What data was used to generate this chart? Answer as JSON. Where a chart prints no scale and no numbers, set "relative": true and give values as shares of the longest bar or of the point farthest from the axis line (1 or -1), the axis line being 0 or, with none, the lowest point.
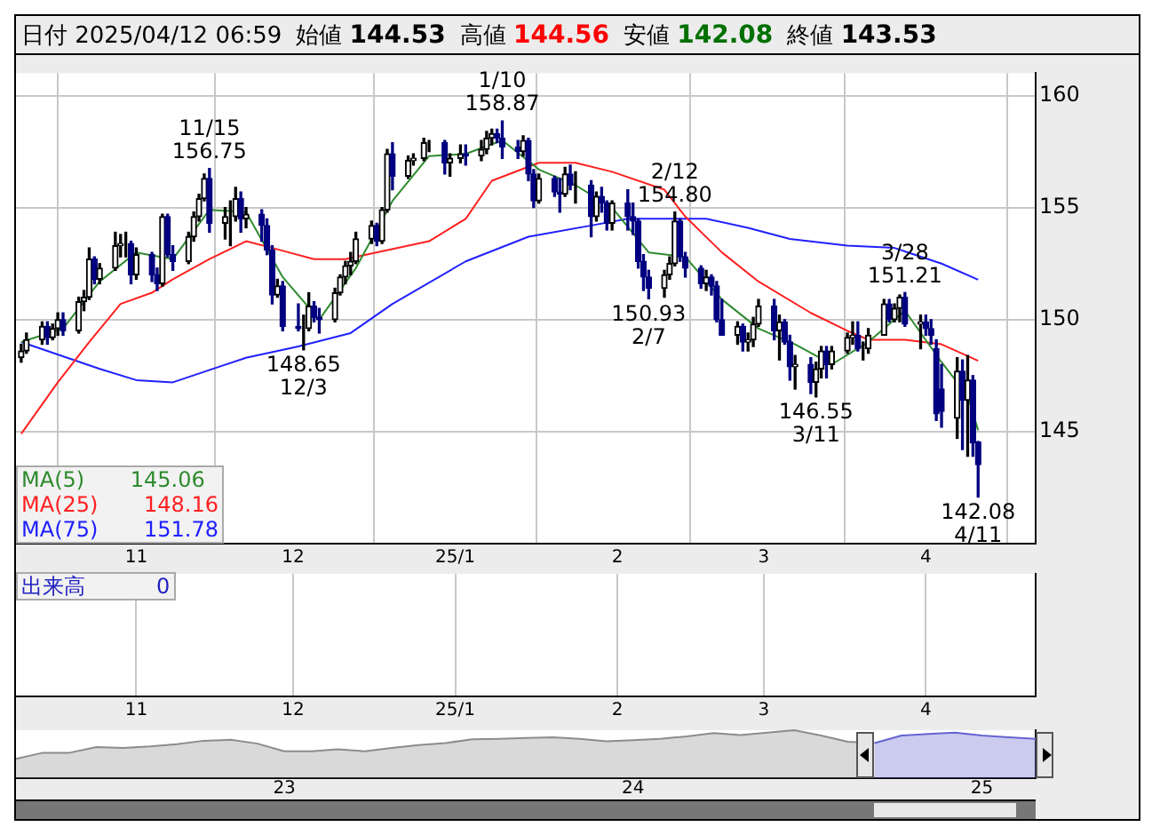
{
  "chart_data": [
    {
      "type": "candlestick",
      "annotations": [
        "日付 2025/04/12 06:59",
        "始値 144.53",
        "高値 144.56",
        "安値 142.08",
        "終値 143.53",
        {
          "text": "11/15\n156.75",
          "x": "2024-11-15",
          "y": 156.75
        },
        {
          "text": "148.65\n12/3",
          "x": "2024-12-03",
          "y": 148.65
        },
        {
          "text": "1/10\n158.87",
          "x": "2025-01-10",
          "y": 158.87
        },
        {
          "text": "150.93\n2/7",
          "x": "2025-02-07",
          "y": 150.93
        },
        {
          "text": "2/12\n154.80",
          "x": "2025-02-12",
          "y": 154.8
        },
        {
          "text": "146.55\n3/11",
          "x": "2025-03-11",
          "y": 146.55
        },
        {
          "text": "3/28\n151.21",
          "x": "2025-03-28",
          "y": 151.21
        },
        {
          "text": "142.08\n4/11",
          "x": "2025-04-11",
          "y": 142.08
        }
      ],
      "x": [
        "2024-10-10",
        "2024-10-11",
        "2024-10-14",
        "2024-10-15",
        "2024-10-16",
        "2024-10-17",
        "2024-10-18",
        "2024-10-21",
        "2024-10-22",
        "2024-10-23",
        "2024-10-24",
        "2024-10-25",
        "2024-10-28",
        "2024-10-29",
        "2024-10-30",
        "2024-10-31",
        "2024-11-01",
        "2024-11-04",
        "2024-11-05",
        "2024-11-06",
        "2024-11-07",
        "2024-11-08",
        "2024-11-11",
        "2024-11-12",
        "2024-11-13",
        "2024-11-14",
        "2024-11-15",
        "2024-11-18",
        "2024-11-19",
        "2024-11-20",
        "2024-11-21",
        "2024-11-22",
        "2024-11-25",
        "2024-11-26",
        "2024-11-27",
        "2024-11-28",
        "2024-11-29",
        "2024-12-02",
        "2024-12-03",
        "2024-12-04",
        "2024-12-05",
        "2024-12-06",
        "2024-12-09",
        "2024-12-10",
        "2024-12-11",
        "2024-12-12",
        "2024-12-13",
        "2024-12-16",
        "2024-12-17",
        "2024-12-18",
        "2024-12-19",
        "2024-12-20",
        "2024-12-23",
        "2024-12-24",
        "2024-12-26",
        "2024-12-27",
        "2024-12-30",
        "2024-12-31",
        "2025-01-02",
        "2025-01-03",
        "2025-01-06",
        "2025-01-07",
        "2025-01-08",
        "2025-01-09",
        "2025-01-10",
        "2025-01-13",
        "2025-01-14",
        "2025-01-15",
        "2025-01-16",
        "2025-01-17",
        "2025-01-20",
        "2025-01-21",
        "2025-01-22",
        "2025-01-23",
        "2025-01-24",
        "2025-01-27",
        "2025-01-28",
        "2025-01-29",
        "2025-01-30",
        "2025-01-31",
        "2025-02-03",
        "2025-02-04",
        "2025-02-05",
        "2025-02-06",
        "2025-02-07",
        "2025-02-10",
        "2025-02-11",
        "2025-02-12",
        "2025-02-13",
        "2025-02-14",
        "2025-02-17",
        "2025-02-18",
        "2025-02-19",
        "2025-02-20",
        "2025-02-21",
        "2025-02-24",
        "2025-02-25",
        "2025-02-26",
        "2025-02-27",
        "2025-02-28",
        "2025-03-03",
        "2025-03-04",
        "2025-03-05",
        "2025-03-06",
        "2025-03-07",
        "2025-03-10",
        "2025-03-11",
        "2025-03-12",
        "2025-03-13",
        "2025-03-14",
        "2025-03-17",
        "2025-03-18",
        "2025-03-19",
        "2025-03-20",
        "2025-03-21",
        "2025-03-24",
        "2025-03-25",
        "2025-03-26",
        "2025-03-27",
        "2025-03-28",
        "2025-03-31",
        "2025-04-01",
        "2025-04-02",
        "2025-04-03",
        "2025-04-04",
        "2025-04-07",
        "2025-04-08",
        "2025-04-09",
        "2025-04-10",
        "2025-04-11"
      ],
      "ohlc": [
        [
          148.3,
          148.9,
          148.1,
          148.6
        ],
        [
          148.6,
          149.4,
          148.5,
          149.1
        ],
        [
          149.1,
          149.9,
          148.9,
          149.7
        ],
        [
          149.7,
          149.9,
          148.9,
          149.2
        ],
        [
          149.2,
          149.8,
          149.1,
          149.6
        ],
        [
          149.6,
          150.3,
          149.3,
          150.0
        ],
        [
          150.0,
          150.3,
          149.3,
          149.5
        ],
        [
          149.5,
          151.0,
          149.4,
          150.8
        ],
        [
          150.8,
          151.3,
          150.4,
          151.0
        ],
        [
          151.0,
          153.2,
          150.9,
          152.7
        ],
        [
          152.7,
          152.8,
          151.6,
          151.8
        ],
        [
          151.8,
          152.5,
          151.6,
          152.3
        ],
        [
          152.3,
          153.9,
          152.2,
          153.3
        ],
        [
          153.3,
          153.8,
          152.8,
          153.4
        ],
        [
          153.4,
          153.9,
          152.8,
          153.4
        ],
        [
          153.4,
          153.5,
          151.6,
          152.0
        ],
        [
          152.0,
          153.2,
          151.8,
          152.9
        ],
        [
          152.9,
          153.0,
          151.7,
          152.0
        ],
        [
          152.0,
          152.3,
          151.3,
          151.6
        ],
        [
          151.6,
          154.7,
          151.5,
          154.6
        ],
        [
          154.6,
          154.7,
          152.8,
          152.9
        ],
        [
          152.9,
          153.3,
          152.2,
          152.6
        ],
        [
          152.6,
          153.9,
          152.5,
          153.7
        ],
        [
          153.7,
          154.8,
          153.5,
          154.6
        ],
        [
          154.6,
          155.6,
          154.4,
          155.4
        ],
        [
          155.4,
          156.5,
          155.3,
          156.3
        ],
        [
          156.3,
          156.75,
          153.9,
          154.3
        ],
        [
          154.3,
          155.0,
          153.6,
          154.6
        ],
        [
          154.6,
          155.3,
          153.3,
          154.6
        ],
        [
          154.6,
          155.9,
          154.4,
          155.4
        ],
        [
          155.4,
          155.7,
          153.9,
          154.5
        ],
        [
          154.5,
          155.0,
          154.1,
          154.7
        ],
        [
          154.7,
          154.9,
          153.5,
          154.2
        ],
        [
          154.2,
          154.5,
          152.9,
          153.1
        ],
        [
          153.1,
          153.3,
          150.7,
          151.1
        ],
        [
          151.1,
          151.8,
          151.0,
          151.5
        ],
        [
          151.5,
          151.7,
          149.5,
          149.7
        ],
        [
          149.7,
          150.7,
          149.5,
          149.6
        ],
        [
          149.6,
          150.2,
          148.65,
          149.6
        ],
        [
          149.6,
          151.2,
          149.5,
          150.6
        ],
        [
          150.6,
          150.8,
          149.9,
          150.1
        ],
        [
          150.1,
          150.5,
          149.4,
          150.0
        ],
        [
          150.0,
          151.4,
          149.9,
          151.2
        ],
        [
          151.2,
          152.0,
          151.1,
          151.9
        ],
        [
          151.9,
          152.6,
          151.6,
          152.4
        ],
        [
          152.4,
          153.0,
          152.0,
          152.6
        ],
        [
          152.6,
          153.9,
          152.5,
          153.6
        ],
        [
          153.6,
          154.4,
          153.4,
          154.2
        ],
        [
          154.2,
          154.3,
          153.3,
          153.5
        ],
        [
          153.5,
          155.0,
          153.4,
          154.9
        ],
        [
          154.9,
          157.6,
          154.8,
          157.4
        ],
        [
          157.4,
          157.9,
          155.8,
          156.4
        ],
        [
          156.4,
          157.3,
          156.3,
          157.1
        ],
        [
          157.1,
          157.4,
          156.9,
          157.2
        ],
        [
          157.2,
          158.1,
          157.1,
          157.9
        ],
        [
          157.9,
          158.0,
          157.5,
          157.9
        ],
        [
          157.9,
          158.0,
          156.5,
          157.0
        ],
        [
          157.0,
          157.4,
          156.4,
          157.2
        ],
        [
          157.2,
          157.8,
          157.0,
          157.4
        ],
        [
          157.4,
          157.8,
          156.9,
          157.3
        ],
        [
          157.3,
          158.0,
          157.1,
          157.6
        ],
        [
          157.6,
          158.4,
          157.4,
          158.1
        ],
        [
          158.1,
          158.5,
          157.8,
          158.3
        ],
        [
          158.3,
          158.5,
          157.9,
          158.1
        ],
        [
          158.1,
          158.87,
          157.2,
          157.7
        ],
        [
          157.7,
          158.0,
          157.2,
          157.5
        ],
        [
          157.5,
          158.2,
          157.3,
          158.0
        ],
        [
          158.0,
          158.1,
          156.2,
          156.5
        ],
        [
          156.5,
          156.7,
          155.0,
          155.3
        ],
        [
          155.3,
          156.5,
          155.2,
          156.3
        ],
        [
          156.3,
          156.4,
          155.5,
          155.7
        ],
        [
          155.7,
          156.3,
          154.8,
          155.6
        ],
        [
          155.6,
          156.8,
          155.5,
          156.5
        ],
        [
          156.5,
          156.9,
          155.8,
          156.0
        ],
        [
          156.0,
          156.6,
          155.2,
          156.0
        ],
        [
          156.0,
          156.2,
          153.7,
          154.6
        ],
        [
          154.6,
          155.7,
          154.4,
          155.5
        ],
        [
          155.5,
          155.9,
          154.8,
          155.2
        ],
        [
          155.2,
          155.3,
          154.0,
          154.3
        ],
        [
          154.3,
          155.3,
          154.0,
          155.2
        ],
        [
          155.2,
          155.8,
          154.0,
          154.6
        ],
        [
          154.6,
          155.2,
          153.8,
          154.4
        ],
        [
          154.4,
          154.5,
          152.3,
          152.6
        ],
        [
          152.6,
          152.9,
          151.3,
          151.9
        ],
        [
          151.9,
          152.2,
          150.93,
          151.4
        ],
        [
          151.4,
          152.2,
          151.0,
          152.0
        ],
        [
          152.0,
          152.8,
          151.8,
          152.5
        ],
        [
          152.5,
          154.8,
          152.4,
          154.4
        ],
        [
          154.4,
          154.5,
          152.6,
          152.8
        ],
        [
          152.8,
          153.0,
          151.9,
          152.3
        ],
        [
          152.3,
          152.4,
          151.4,
          151.6
        ],
        [
          151.6,
          152.2,
          151.3,
          151.9
        ],
        [
          151.9,
          152.0,
          151.1,
          151.5
        ],
        [
          151.5,
          151.7,
          149.9,
          150.0
        ],
        [
          150.0,
          150.9,
          149.3,
          149.3
        ],
        [
          149.3,
          149.9,
          148.9,
          149.7
        ],
        [
          149.7,
          149.8,
          148.6,
          149.0
        ],
        [
          149.0,
          149.4,
          148.6,
          149.1
        ],
        [
          149.1,
          150.1,
          148.8,
          149.8
        ],
        [
          149.8,
          150.9,
          149.7,
          150.6
        ],
        [
          150.6,
          150.9,
          149.1,
          149.5
        ],
        [
          149.5,
          150.2,
          148.2,
          149.9
        ],
        [
          149.9,
          150.0,
          148.9,
          149.0
        ],
        [
          149.0,
          149.3,
          147.3,
          147.9
        ],
        [
          147.9,
          148.4,
          146.9,
          148.0
        ],
        [
          148.0,
          148.3,
          146.7,
          147.2
        ],
        [
          147.2,
          148.1,
          146.55,
          147.8
        ],
        [
          147.8,
          148.8,
          147.4,
          148.6
        ],
        [
          148.6,
          148.8,
          147.4,
          148.0
        ],
        [
          148.0,
          148.8,
          147.8,
          148.6
        ],
        [
          148.6,
          149.4,
          148.5,
          149.2
        ],
        [
          149.2,
          149.9,
          148.9,
          149.3
        ],
        [
          149.3,
          149.9,
          148.6,
          148.7
        ],
        [
          148.7,
          149.0,
          148.2,
          148.7
        ],
        [
          148.7,
          149.6,
          148.5,
          149.3
        ],
        [
          149.3,
          150.9,
          149.3,
          150.7
        ],
        [
          150.7,
          150.9,
          149.9,
          150.0
        ],
        [
          150.0,
          150.7,
          149.9,
          150.5
        ],
        [
          150.5,
          151.1,
          149.9,
          151.0
        ],
        [
          151.0,
          151.21,
          149.7,
          149.8
        ],
        [
          149.8,
          150.2,
          148.7,
          149.9
        ],
        [
          149.9,
          150.2,
          149.3,
          149.6
        ],
        [
          149.6,
          150.0,
          148.9,
          149.3
        ],
        [
          148.7,
          149.1,
          145.5,
          145.8
        ],
        [
          146.9,
          148.0,
          145.2,
          145.9
        ],
        [
          145.6,
          148.3,
          144.7,
          147.7
        ],
        [
          147.7,
          148.2,
          144.2,
          146.4
        ],
        [
          146.4,
          148.4,
          143.9,
          147.3
        ],
        [
          147.3,
          147.5,
          143.9,
          144.5
        ],
        [
          144.53,
          144.56,
          142.08,
          143.53
        ]
      ],
      "series": [
        {
          "name": "MA(5) 145.06",
          "type": "line",
          "color": "#2e8b2e",
          "x": [
            "2024-10-10",
            "2024-10-18",
            "2024-10-25",
            "2024-11-01",
            "2024-11-08",
            "2024-11-15",
            "2024-11-22",
            "2024-11-29",
            "2024-12-06",
            "2024-12-13",
            "2024-12-20",
            "2024-12-27",
            "2025-01-03",
            "2025-01-10",
            "2025-01-17",
            "2025-01-24",
            "2025-01-31",
            "2025-02-07",
            "2025-02-14",
            "2025-02-21",
            "2025-02-28",
            "2025-03-07",
            "2025-03-14",
            "2025-03-21",
            "2025-03-28",
            "2025-04-04",
            "2025-04-09",
            "2025-04-11"
          ],
          "values": [
            149.0,
            149.6,
            151.7,
            153.0,
            152.7,
            154.9,
            154.8,
            151.9,
            150.0,
            152.3,
            155.3,
            157.3,
            157.4,
            158.0,
            156.7,
            156.0,
            155.0,
            153.0,
            152.8,
            150.9,
            149.6,
            148.9,
            148.0,
            149.0,
            150.4,
            148.1,
            146.6,
            145.06
          ]
        },
        {
          "name": "MA(25) 148.16",
          "type": "line",
          "color": "#ff2020",
          "x": [
            "2024-10-10",
            "2024-10-17",
            "2024-10-23",
            "2024-10-29",
            "2024-11-04",
            "2024-11-08",
            "2024-11-15",
            "2024-11-22",
            "2024-11-27",
            "2024-12-05",
            "2024-12-11",
            "2024-12-27",
            "2025-01-03",
            "2025-01-08",
            "2025-01-17",
            "2025-01-24",
            "2025-01-31",
            "2025-02-10",
            "2025-02-14",
            "2025-02-21",
            "2025-02-28",
            "2025-03-10",
            "2025-03-17",
            "2025-03-21",
            "2025-03-28",
            "2025-04-04",
            "2025-04-11"
          ],
          "values": [
            144.9,
            147.2,
            149.0,
            150.7,
            151.2,
            151.8,
            152.7,
            153.5,
            153.2,
            152.7,
            152.7,
            153.5,
            154.5,
            156.2,
            157.0,
            157.0,
            156.6,
            155.8,
            154.6,
            153.0,
            151.7,
            150.3,
            149.5,
            149.1,
            149.1,
            148.9,
            148.16
          ]
        },
        {
          "name": "MA(75) 151.78",
          "type": "line",
          "color": "#2020ff",
          "x": [
            "2024-10-10",
            "2024-10-25",
            "2024-11-01",
            "2024-11-08",
            "2024-11-22",
            "2024-12-02",
            "2024-12-12",
            "2024-12-20",
            "2025-01-03",
            "2025-01-15",
            "2025-01-27",
            "2025-02-03",
            "2025-02-18",
            "2025-02-26",
            "2025-03-06",
            "2025-03-17",
            "2025-03-26",
            "2025-04-04",
            "2025-04-11"
          ],
          "values": [
            149.0,
            147.8,
            147.3,
            147.2,
            148.3,
            148.8,
            149.4,
            150.7,
            152.6,
            153.7,
            154.2,
            154.5,
            154.5,
            154.1,
            153.6,
            153.3,
            153.2,
            152.5,
            151.78
          ]
        }
      ],
      "xlim": [
        "2024-10-09",
        "2025-04-22"
      ],
      "xticks": [
        {
          "value": "2024-11-01",
          "label": "11"
        },
        {
          "value": "2024-12-01",
          "label": "12"
        },
        {
          "value": "2025-01-01",
          "label": "25/1"
        },
        {
          "value": "2025-02-01",
          "label": "2"
        },
        {
          "value": "2025-03-01",
          "label": "3"
        },
        {
          "value": "2025-04-01",
          "label": "4"
        }
      ],
      "ylim": [
        140,
        161
      ],
      "yticks": [
        145,
        150,
        155,
        160
      ],
      "grid": true,
      "legend": "bottom left"
    },
    {
      "type": "other",
      "annotations": [
        "出来高",
        "0"
      ]
    },
    {
      "type": "area",
      "relative": true,
      "categories": [
        null,
        null,
        null,
        null,
        null,
        null,
        null,
        null,
        null,
        null,
        "23",
        null,
        null,
        null,
        null,
        null,
        null,
        null,
        null,
        null,
        null,
        null,
        null,
        "24",
        null,
        null,
        null,
        null,
        null,
        null,
        null,
        null,
        null,
        null,
        null,
        null,
        "25",
        null,
        null
      ],
      "series": [
        {
          "color": "#8c8c8c",
          "values": [
            0.4,
            0.53,
            0.53,
            0.65,
            0.63,
            0.66,
            0.71,
            0.78,
            0.8,
            0.72,
            0.56,
            0.56,
            0.6,
            0.56,
            0.63,
            0.69,
            0.73,
            0.81,
            0.82,
            0.84,
            0.85,
            0.82,
            0.77,
            0.79,
            0.82,
            0.87,
            0.94,
            0.9,
            0.95,
            1,
            0.89,
            0.76,
            0.73,
            null,
            null,
            null,
            null,
            null,
            null
          ]
        },
        {
          "color": "#6464d2",
          "values": [
            null,
            null,
            null,
            null,
            null,
            null,
            null,
            null,
            null,
            null,
            null,
            null,
            null,
            null,
            null,
            null,
            null,
            null,
            null,
            null,
            null,
            null,
            null,
            null,
            null,
            null,
            null,
            null,
            null,
            null,
            null,
            null,
            0.73,
            0.89,
            0.92,
            0.95,
            0.89,
            0.85,
            0.82
          ]
        }
      ]
    }
  ]
}
